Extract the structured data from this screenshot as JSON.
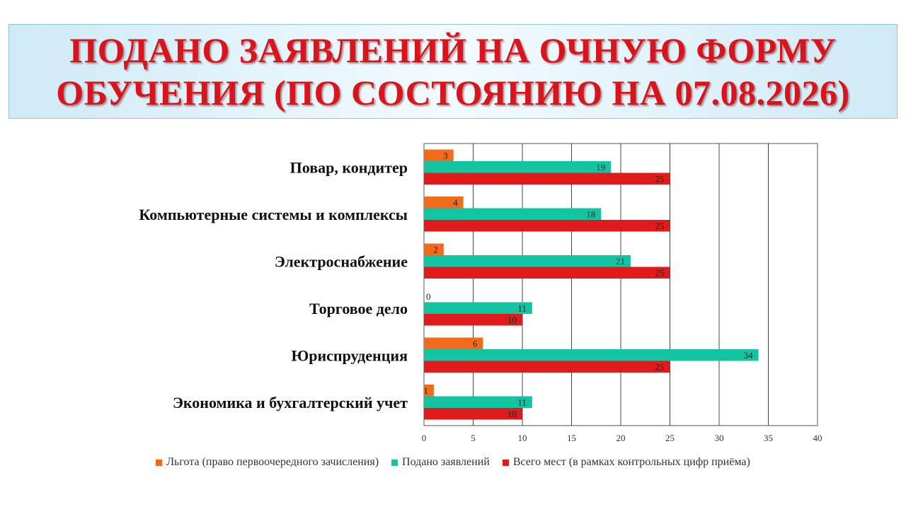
{
  "title": {
    "line1": "ПОДАНО ЗАЯВЛЕНИЙ НА ОЧНУЮ ФОРМУ",
    "line2": "ОБУЧЕНИЯ (ПО СОСТОЯНИЮ НА 07.08.2026)"
  },
  "chart_data": {
    "type": "bar",
    "orientation": "horizontal",
    "categories": [
      "Повар, кондитер",
      "Компьютерные системы и комплексы",
      "Электроснабжение",
      "Торговое дело",
      "Юриспруденция",
      "Экономика и бухгалтерский учет"
    ],
    "series": [
      {
        "name": "Льгота (право первоочередного зачисления)",
        "color": "#f26b1d",
        "values": [
          3,
          4,
          2,
          0,
          6,
          1
        ]
      },
      {
        "name": "Подано заявлений",
        "color": "#13c4a3",
        "values": [
          19,
          18,
          21,
          11,
          34,
          11
        ]
      },
      {
        "name": "Всего мест (в рамках контрольных цифр приёма)",
        "color": "#e01b1b",
        "values": [
          25,
          25,
          25,
          10,
          25,
          10
        ]
      }
    ],
    "xlim": [
      0,
      40
    ],
    "xticks": [
      0,
      5,
      10,
      15,
      20,
      25,
      30,
      35,
      40
    ],
    "grid": true,
    "legend_position": "bottom"
  }
}
